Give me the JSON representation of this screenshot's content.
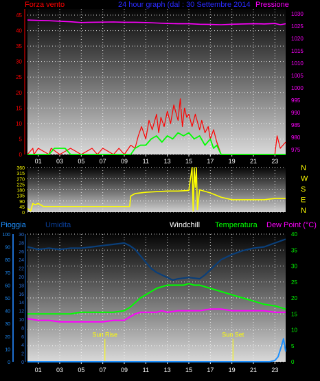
{
  "colors": {
    "background": "#000000",
    "wind_gust": "#ff0000",
    "wind_avg": "#00ff00",
    "pressure": "#ff00ff",
    "direction": "#ffff00",
    "rain": "#1e90ff",
    "humidity": "#0a3f7a",
    "temperature": "#00ff00",
    "dewpoint": "#ff00ff",
    "title": "#2a2aff",
    "windchill_label": "#ffffff",
    "grid": "#ffffff"
  },
  "header": {
    "left_label": "Forza vento",
    "title": "24 hour graph (dal : 30 Settembre 2014",
    "right_label": "Pressione"
  },
  "x_ticks": [
    "01",
    "03",
    "05",
    "07",
    "09",
    "11",
    "13",
    "15",
    "17",
    "19",
    "21",
    "23"
  ],
  "chart_data": [
    {
      "type": "line",
      "id": "wind-pressure",
      "left_axis": {
        "label": "Forza vento",
        "ylim": [
          0,
          47
        ],
        "ticks": [
          0,
          5,
          10,
          15,
          20,
          25,
          30,
          35,
          40,
          45
        ]
      },
      "right_axis": {
        "label": "Pressione",
        "ylim": [
          973,
          1032
        ],
        "ticks": [
          975,
          980,
          985,
          990,
          995,
          1000,
          1005,
          1010,
          1015,
          1020,
          1025,
          1030
        ]
      },
      "x_range": [
        0,
        24
      ],
      "series": [
        {
          "name": "Pressione",
          "axis": "right",
          "x": [
            0,
            2,
            4,
            5,
            6,
            8,
            9,
            10,
            11,
            12,
            13,
            14,
            15,
            16,
            17,
            18,
            19,
            20,
            21,
            22,
            23,
            23.5,
            24
          ],
          "y": [
            1027.5,
            1027.2,
            1026.8,
            1026.5,
            1026.6,
            1026.7,
            1026.6,
            1026.6,
            1026.5,
            1026.3,
            1026.1,
            1026.0,
            1026.0,
            1025.8,
            1025.7,
            1025.6,
            1025.8,
            1025.9,
            1026.0,
            1025.9,
            1026.1,
            1025.6,
            1026.0
          ]
        },
        {
          "name": "Raffica",
          "axis": "left",
          "x": [
            0,
            0.5,
            0.6,
            1,
            2,
            2.2,
            3,
            4,
            5,
            6,
            6.5,
            7,
            8,
            8.5,
            9,
            9.6,
            10,
            10.3,
            10.6,
            11,
            11.3,
            11.6,
            12,
            12.2,
            12.4,
            12.7,
            13,
            13.3,
            13.6,
            14,
            14.2,
            14.4,
            14.6,
            14.8,
            15,
            15.3,
            15.6,
            16,
            16.2,
            16.5,
            16.8,
            17,
            17.3,
            17.6,
            18,
            19,
            20,
            21,
            22,
            23,
            23.2,
            23.5,
            24
          ],
          "y": [
            0,
            2,
            0,
            2,
            0,
            2,
            0,
            2,
            0,
            2,
            0,
            2,
            0,
            2,
            0,
            3,
            2,
            6,
            9,
            5,
            11,
            8,
            13,
            7,
            12,
            9,
            14,
            10,
            16,
            11,
            18,
            9,
            15,
            12,
            13,
            9,
            13,
            8,
            11,
            7,
            9,
            5,
            8,
            4,
            0,
            0,
            0,
            0,
            0,
            0,
            6,
            2,
            4
          ]
        },
        {
          "name": "Vento medio",
          "axis": "left",
          "x": [
            0,
            2,
            2.5,
            3.5,
            4,
            9,
            9.6,
            10,
            10.5,
            11,
            11.5,
            12,
            12.5,
            13,
            13.5,
            14,
            14.5,
            15,
            15.5,
            16,
            16.5,
            17,
            17.3,
            17.6,
            18,
            24
          ],
          "y": [
            0,
            0,
            2,
            2,
            0,
            0,
            0,
            2,
            3,
            3,
            5,
            6,
            4,
            6,
            5,
            7,
            6,
            7,
            5,
            6,
            3,
            5,
            2,
            3,
            0,
            0
          ]
        }
      ]
    },
    {
      "type": "line",
      "id": "wind-direction",
      "left_axis": {
        "ylim": [
          0,
          360
        ],
        "ticks": [
          0,
          45,
          90,
          135,
          180,
          225,
          270,
          315,
          360
        ]
      },
      "right_axis_letters": [
        "N",
        "W",
        "S",
        "E",
        "N"
      ],
      "x_range": [
        0,
        24
      ],
      "series": [
        {
          "name": "Direzione",
          "x": [
            0,
            0.3,
            0.5,
            0.7,
            1,
            1.5,
            2,
            9.5,
            9.6,
            10,
            11,
            12,
            13,
            14,
            15,
            15.3,
            15.4,
            15.5,
            15.6,
            15.7,
            15.8,
            16,
            17,
            18,
            19,
            22,
            23,
            24
          ],
          "y": [
            30,
            10,
            70,
            60,
            70,
            45,
            45,
            45,
            130,
            150,
            160,
            165,
            170,
            170,
            175,
            360,
            10,
            360,
            200,
            360,
            20,
            180,
            155,
            120,
            100,
            100,
            110,
            110
          ]
        }
      ]
    },
    {
      "type": "line",
      "id": "temp-humidity",
      "labels": [
        "Pioggia",
        "Umidita",
        "Windchill",
        "Temperatura",
        "Dew Point (°C)"
      ],
      "rain_axis": {
        "label": "Pioggia",
        "ylim": [
          0,
          100
        ],
        "ticks": [
          0,
          10,
          20,
          30,
          40,
          50,
          60,
          70,
          80,
          90,
          100
        ]
      },
      "humidity_axis": {
        "label": "Umidita",
        "ylim": [
          0,
          30
        ],
        "ticks": [
          0,
          2,
          4,
          6,
          8,
          10,
          12,
          14,
          16,
          18,
          20,
          22,
          24,
          26,
          28,
          30
        ]
      },
      "temp_axis": {
        "label": "Temperatura",
        "ylim": [
          0,
          40
        ],
        "ticks": [
          0,
          5,
          10,
          15,
          20,
          25,
          30,
          35,
          40
        ]
      },
      "x_range": [
        0,
        24
      ],
      "annotations": [
        {
          "label": "Sun Rise",
          "x": 7.2
        },
        {
          "label": "Sun Set",
          "x": 19.1
        }
      ],
      "series": [
        {
          "name": "Umidita",
          "axis": "rain",
          "x": [
            0,
            1,
            2,
            3,
            4,
            5,
            6,
            7,
            8,
            9,
            9.5,
            10,
            10.5,
            11,
            11.5,
            12,
            12.5,
            13,
            13.5,
            14,
            15,
            16,
            16.5,
            17,
            17.5,
            18,
            19,
            20,
            21,
            22,
            23,
            24
          ],
          "y": [
            90,
            88,
            89,
            88,
            89,
            89,
            90,
            91,
            92,
            93,
            91,
            88,
            83,
            78,
            73,
            70,
            68,
            66,
            64,
            65,
            66,
            65,
            68,
            72,
            76,
            80,
            84,
            87,
            89,
            90,
            93,
            96
          ]
        },
        {
          "name": "Temperatura",
          "axis": "temp",
          "x": [
            0,
            1,
            2,
            3,
            4,
            5,
            6,
            7,
            8,
            9,
            9.5,
            10,
            10.5,
            11,
            11.5,
            12,
            12.5,
            13,
            13.5,
            14,
            14.5,
            15,
            15.5,
            16,
            16.5,
            17,
            18,
            19,
            20,
            21,
            22,
            23,
            24
          ],
          "y": [
            15,
            15,
            15,
            15,
            15,
            15.5,
            15.5,
            15.5,
            15.5,
            16,
            17,
            18.5,
            20,
            21,
            22,
            23,
            23.5,
            24,
            24,
            24,
            24,
            24.5,
            24,
            24,
            23.5,
            23,
            22,
            21,
            20,
            19,
            18,
            17.5,
            16.5
          ]
        },
        {
          "name": "Dew Point",
          "axis": "temp",
          "x": [
            0,
            1,
            2,
            3,
            4,
            5,
            6,
            7,
            8,
            9,
            9.5,
            10,
            10.5,
            11,
            11.5,
            12,
            12.5,
            13,
            14,
            15,
            16,
            17,
            18,
            19,
            20,
            21,
            22,
            23,
            24
          ],
          "y": [
            13.5,
            13,
            13,
            12.5,
            12.5,
            12.5,
            12.5,
            12.5,
            13,
            13,
            14,
            15,
            15.5,
            15.5,
            15.5,
            15.5,
            16,
            15.5,
            16,
            16,
            16,
            16.5,
            16.5,
            16,
            16,
            16,
            16,
            15.5,
            15.5
          ]
        },
        {
          "name": "Pioggia",
          "axis": "rain",
          "x": [
            0,
            22,
            22.5,
            23,
            23.3,
            23.6,
            23.8,
            24
          ],
          "y": [
            0,
            0,
            0,
            1,
            4,
            12,
            18,
            8
          ]
        }
      ]
    }
  ]
}
